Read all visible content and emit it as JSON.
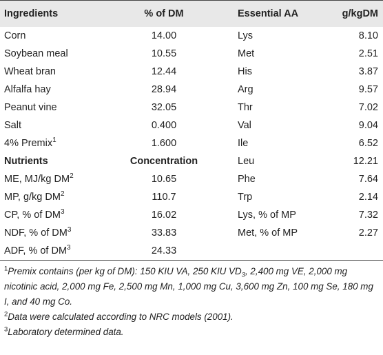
{
  "table": {
    "header": [
      "Ingredients",
      "% of DM",
      "Essential AA",
      "g/kgDM"
    ],
    "rows": [
      [
        "Corn",
        "14.00",
        "Lys",
        "8.10"
      ],
      [
        "Soybean meal",
        "10.55",
        "Met",
        "2.51"
      ],
      [
        "Wheat bran",
        "12.44",
        "His",
        "3.87"
      ],
      [
        "Alfalfa hay",
        "28.94",
        "Arg",
        "9.57"
      ],
      [
        "Peanut vine",
        "32.05",
        "Thr",
        "7.02"
      ],
      [
        "Salt",
        "0.400",
        "Val",
        "9.04"
      ],
      [
        {
          "text": "4% Premix",
          "sup": "1"
        },
        "1.600",
        "Ile",
        "6.52"
      ],
      [
        {
          "text": "Nutrients",
          "bold": true
        },
        {
          "text": "Concentration",
          "bold": true
        },
        "Leu",
        "12.21"
      ],
      [
        {
          "text": "ME, MJ/kg DM",
          "sup": "2"
        },
        "10.65",
        "Phe",
        "7.64"
      ],
      [
        {
          "text": "MP, g/kg DM",
          "sup": "2"
        },
        "110.7",
        "Trp",
        "2.14"
      ],
      [
        {
          "text": "CP, % of DM",
          "sup": "3"
        },
        "16.02",
        "Lys, % of MP",
        "7.32"
      ],
      [
        {
          "text": "NDF, % of DM",
          "sup": "3"
        },
        "33.83",
        "Met, % of MP",
        "2.27"
      ],
      [
        {
          "text": "ADF, % of DM",
          "sup": "3"
        },
        "24.33",
        null,
        null
      ]
    ]
  },
  "footnotes": [
    {
      "mark": "1",
      "parts": [
        {
          "t": "Premix contains (per kg of DM): 150 KIU VA, 250 KIU VD"
        },
        {
          "sub": "3"
        },
        {
          "t": ", 2,400 mg VE, 2,000 mg nicotinic acid, 2,000 mg Fe, 2,500 mg Mn, 1,000 mg Cu, 3,600 mg Zn, 100 mg Se, 180 mg I, and 40 mg Co."
        }
      ]
    },
    {
      "mark": "2",
      "parts": [
        {
          "t": "Data were calculated according to NRC models (2001)."
        }
      ]
    },
    {
      "mark": "3",
      "parts": [
        {
          "t": "Laboratory determined data."
        }
      ]
    }
  ]
}
